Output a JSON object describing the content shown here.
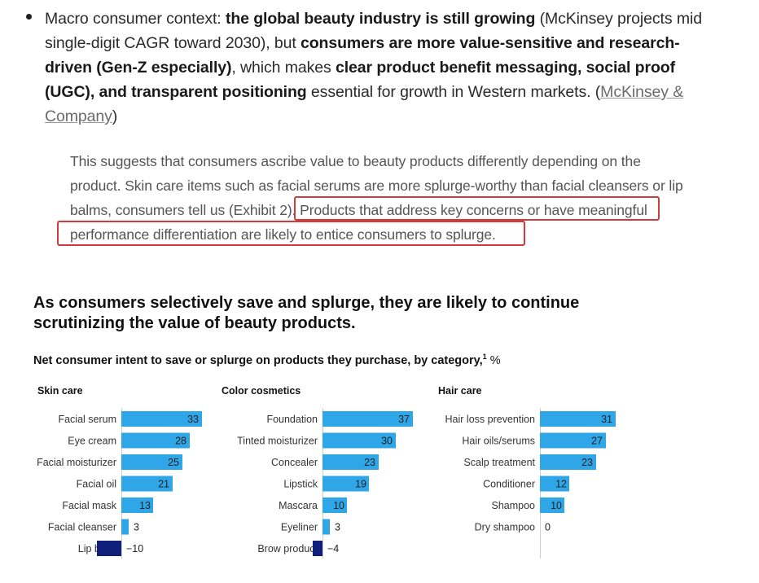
{
  "bullet": {
    "t1": "Macro consumer context: ",
    "b1": "the global beauty industry is still growing",
    "t2": " (McKinsey projects mid single-digit CAGR toward 2030), but ",
    "b2": "consumers are more value-sensitive and research-driven (Gen-Z especially)",
    "t3": ", which makes ",
    "b3": "clear product benefit messaging, social proof (UGC), and transparent positioning",
    "t4": " essential for growth in Western markets. (",
    "link": "McKinsey & Company",
    "t5": ")"
  },
  "quote": {
    "part1": "This suggests that consumers ascribe value to beauty products differently depending on the product. Skin care items such as facial serums are more splurge-worthy than facial cleansers or lip balms, consumers tell us (Exhibit 2). ",
    "highlighted": "Products that address key concerns or have meaningful performance differentiation are likely to entice consumers to splurge."
  },
  "colors": {
    "positive": "#2ea6e8",
    "negative": "#0f1f7a",
    "highlight_border": "#d33a3a"
  },
  "chart_data": {
    "type": "bar",
    "title": "As consumers selectively save and splurge, they are likely to continue scrutinizing the value of beauty products.",
    "subtitle": "Net consumer intent to save or splurge on products they purchase, by category,",
    "subtitle_footnote": "1",
    "unit": "%",
    "panels": [
      {
        "name": "Skin care",
        "categories": [
          "Facial serum",
          "Eye cream",
          "Facial moisturizer",
          "Facial oil",
          "Facial mask",
          "Facial cleanser",
          "Lip balm"
        ],
        "values": [
          33,
          28,
          25,
          21,
          13,
          3,
          -10
        ]
      },
      {
        "name": "Color cosmetics",
        "categories": [
          "Foundation",
          "Tinted moisturizer",
          "Concealer",
          "Lipstick",
          "Mascara",
          "Eyeliner",
          "Brow product"
        ],
        "values": [
          37,
          30,
          23,
          19,
          10,
          3,
          -4
        ]
      },
      {
        "name": "Hair care",
        "categories": [
          "Hair loss prevention",
          "Hair oils/serums",
          "Scalp treatment",
          "Conditioner",
          "Shampoo",
          "Dry shampoo"
        ],
        "values": [
          31,
          27,
          23,
          12,
          10,
          0
        ]
      }
    ]
  }
}
